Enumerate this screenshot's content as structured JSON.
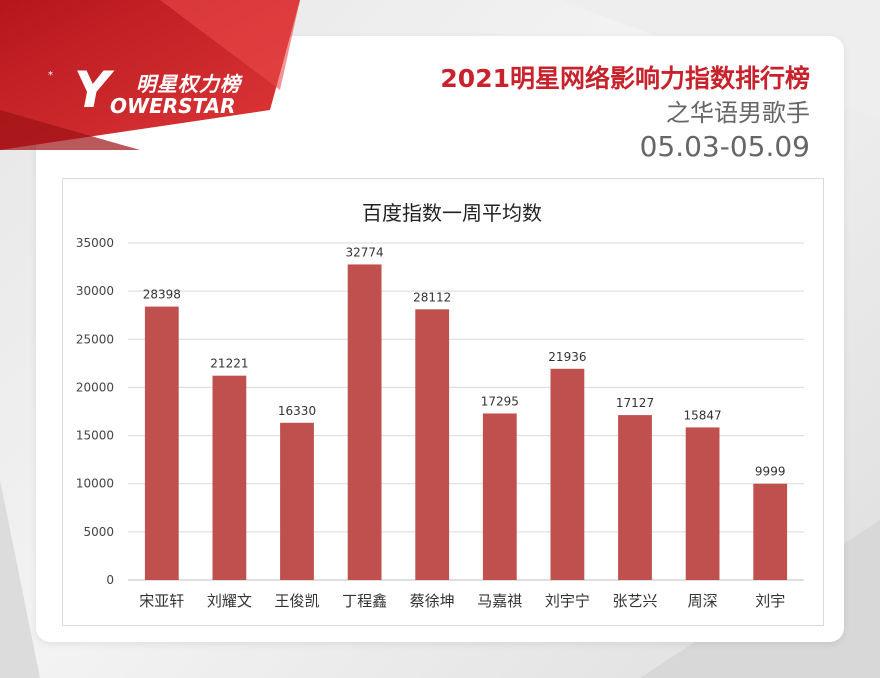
{
  "brand": {
    "y_letter": "Y",
    "name_cn": "明星权力榜",
    "name_en": "OWERSTAR",
    "star": "*"
  },
  "header": {
    "title": "2021明星网络影响力指数排行榜",
    "subtitle": "之华语男歌手",
    "date_range": "05.03-05.09"
  },
  "colors": {
    "bar": "#c0504d",
    "title_red": "#c8232c",
    "banner_red": "#d42a2e"
  },
  "chart_data": {
    "type": "bar",
    "title": "百度指数一周平均数",
    "categories": [
      "宋亚轩",
      "刘耀文",
      "王俊凯",
      "丁程鑫",
      "蔡徐坤",
      "马嘉祺",
      "刘宇宁",
      "张艺兴",
      "周深",
      "刘宇"
    ],
    "values": [
      28398,
      21221,
      16330,
      32774,
      28112,
      17295,
      21936,
      17127,
      15847,
      9999
    ],
    "ylim": [
      0,
      35000
    ],
    "yticks": [
      0,
      5000,
      10000,
      15000,
      20000,
      25000,
      30000,
      35000
    ],
    "grid": true,
    "data_labels": true
  }
}
